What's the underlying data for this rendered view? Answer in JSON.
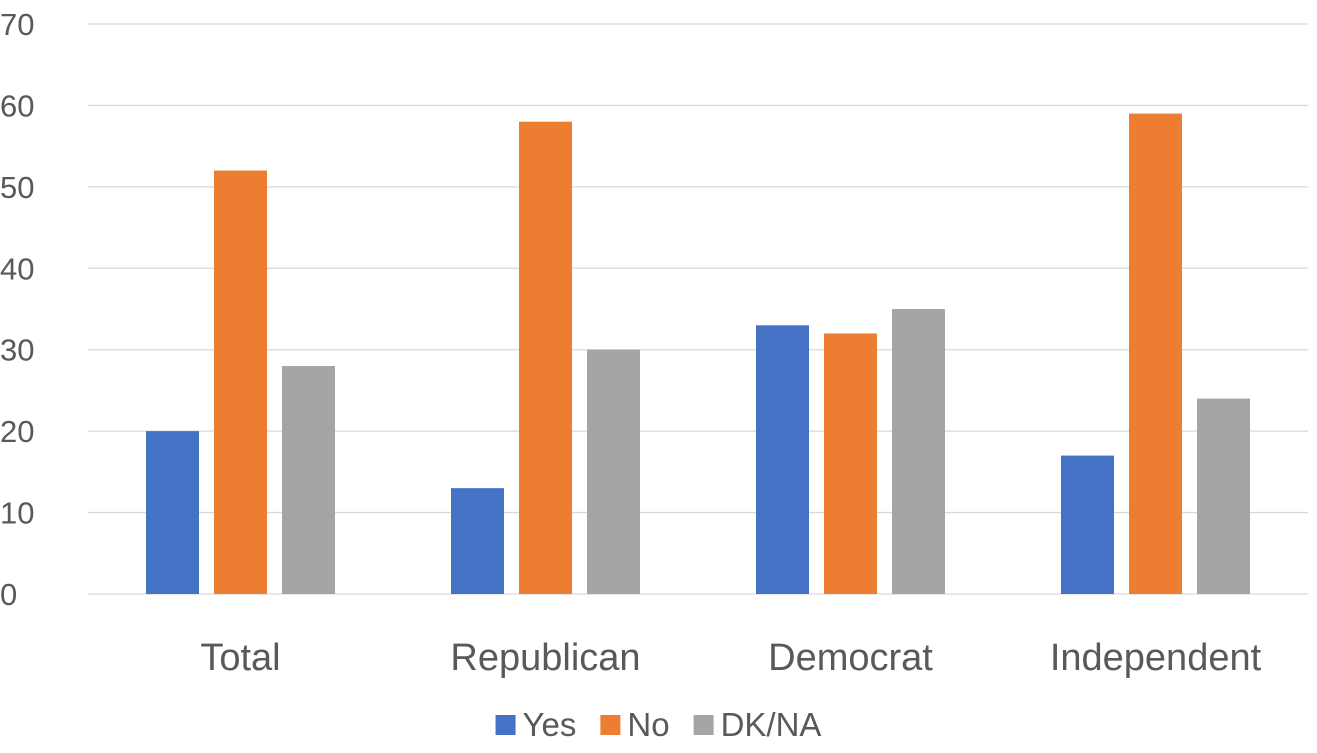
{
  "chart_data": {
    "type": "bar",
    "title": "",
    "xlabel": "",
    "ylabel": "",
    "categories": [
      "Total",
      "Republican",
      "Democrat",
      "Independent"
    ],
    "series": [
      {
        "name": "Yes",
        "values": [
          20,
          13,
          33,
          17
        ],
        "color": "#4472c4"
      },
      {
        "name": "No",
        "values": [
          52,
          58,
          32,
          59
        ],
        "color": "#ed7d31"
      },
      {
        "name": "DK/NA",
        "values": [
          28,
          30,
          35,
          24
        ],
        "color": "#a5a5a5"
      }
    ],
    "ylim": [
      0,
      70
    ],
    "yticks": [
      0,
      10,
      20,
      30,
      40,
      50,
      60,
      70
    ],
    "grid": true,
    "legend_position": "bottom"
  }
}
